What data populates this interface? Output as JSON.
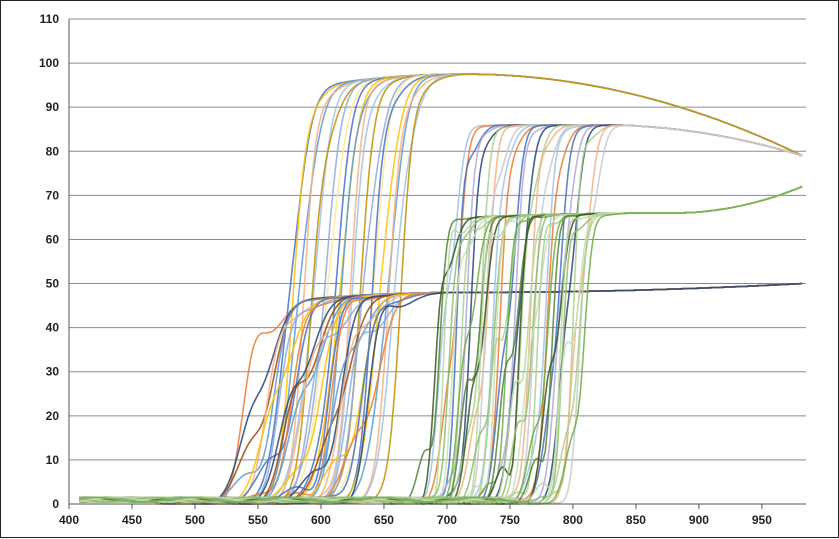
{
  "chart_data": {
    "type": "line",
    "title": "",
    "xlabel": "",
    "ylabel": "",
    "xlim": [
      400,
      985
    ],
    "ylim": [
      0,
      110
    ],
    "grid": "horizontal",
    "legend": "none",
    "x_ticks": [
      "400",
      "450",
      "500",
      "550",
      "600",
      "650",
      "700",
      "750",
      "800",
      "850",
      "900",
      "950"
    ],
    "y_ticks": [
      "0",
      "10",
      "20",
      "30",
      "40",
      "50",
      "60",
      "70",
      "80",
      "90",
      "100",
      "110"
    ],
    "palette": [
      "#4472c4",
      "#ed7d31",
      "#a5a5a5",
      "#ffc000",
      "#5b9bd5",
      "#70ad47",
      "#264478",
      "#9e480e",
      "#636363",
      "#997300",
      "#f4b183",
      "#c9c9c9",
      "#9dc3e6",
      "#a9d18e",
      "#8faadc"
    ],
    "families": [
      {
        "name": "",
        "count": 22,
        "edge_start": 575,
        "edge_end": 665,
        "edge_width": 55,
        "plateau_start": 80,
        "plateau_peak": 97.5,
        "plateau_peak_x": 715,
        "plateau_end": 79,
        "fringe_period": 70,
        "fringe_amp": 12,
        "colors": [
          "#4472c4",
          "#ffc000",
          "#5b9bd5",
          "#f4b183",
          "#9dc3e6",
          "#bf9000",
          "#8faadc",
          "#ffe699"
        ]
      },
      {
        "name": "",
        "count": 26,
        "edge_start": 545,
        "edge_end": 640,
        "edge_width": 75,
        "plateau_start": 40,
        "plateau_peak": 48,
        "plateau_peak_x": 720,
        "plateau_end": 50,
        "fringe_period": 60,
        "fringe_amp": 10,
        "colors": [
          "#4472c4",
          "#ed7d31",
          "#264478",
          "#9e480e",
          "#5b9bd5",
          "#f4b183",
          "#ffc000",
          "#8faadc"
        ]
      },
      {
        "name": "",
        "count": 24,
        "edge_start": 700,
        "edge_end": 810,
        "edge_width": 40,
        "plateau_start": 85,
        "plateau_peak": 86,
        "plateau_peak_x": 820,
        "plateau_end": 79,
        "fringe_period": 34,
        "fringe_amp": 14,
        "colors": [
          "#f4b183",
          "#c9c9c9",
          "#9dc3e6",
          "#ed7d31",
          "#4472c4",
          "#b4a7d6",
          "#264478",
          "#a9d18e"
        ]
      },
      {
        "name": "",
        "count": 28,
        "edge_start": 690,
        "edge_end": 805,
        "edge_width": 40,
        "plateau_start": 58,
        "plateau_peak": 66,
        "plateau_peak_x": 880,
        "plateau_end": 72,
        "fringe_period": 32,
        "fringe_amp": 16,
        "colors": [
          "#c5e0b4",
          "#a9d18e",
          "#70ad47",
          "#548235",
          "#375623",
          "#b7d7a0",
          "#8fbc6b"
        ]
      }
    ]
  }
}
